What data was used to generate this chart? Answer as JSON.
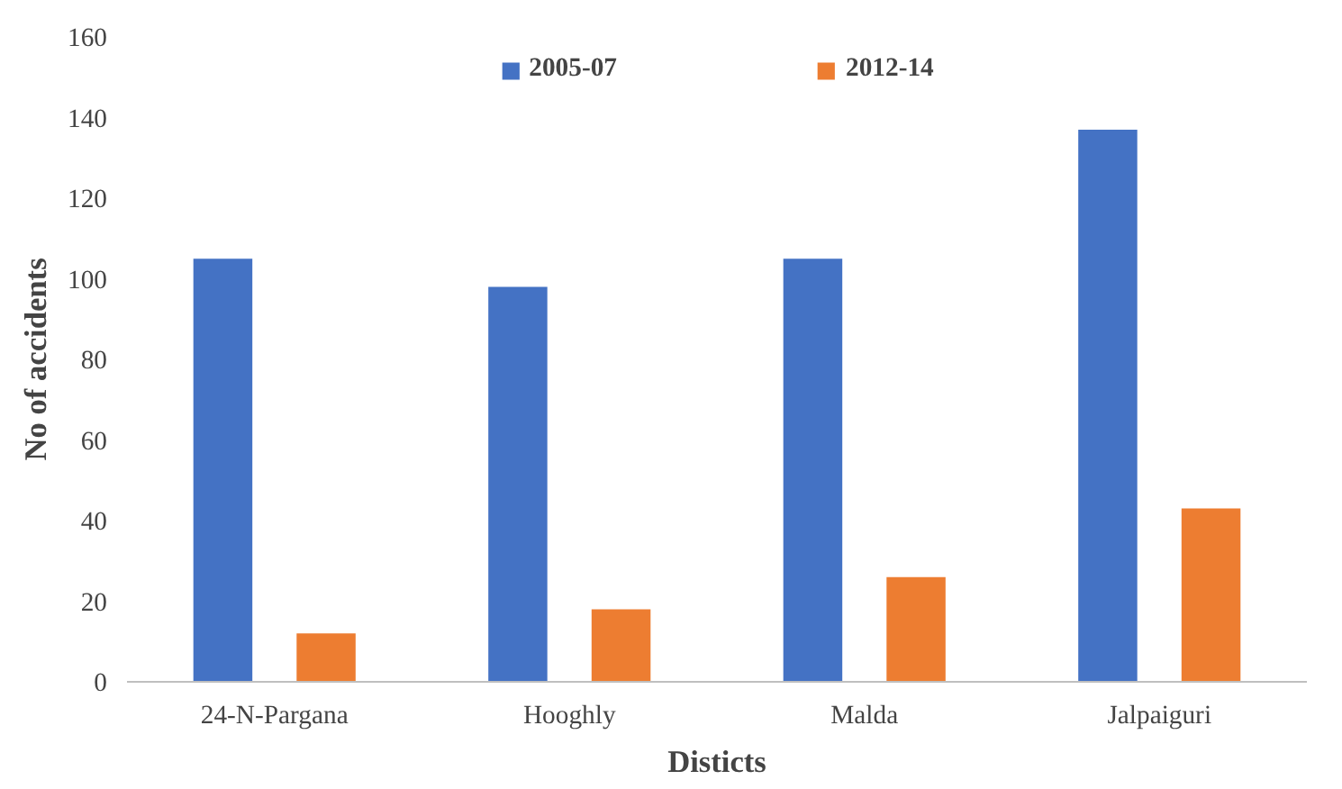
{
  "chart_data": {
    "type": "bar",
    "xlabel": "Disticts",
    "ylabel": "No of accidents",
    "categories": [
      "24-N-Pargana",
      "Hooghly",
      "Malda",
      "Jalpaiguri"
    ],
    "series": [
      {
        "name": "2005-07",
        "color": "#4472c4",
        "values": [
          105,
          98,
          105,
          137
        ]
      },
      {
        "name": "2012-14",
        "color": "#ed7d31",
        "values": [
          12,
          18,
          26,
          43
        ]
      }
    ],
    "ylim": [
      0,
      160
    ],
    "yticks": [
      0,
      20,
      40,
      60,
      80,
      100,
      120,
      140,
      160
    ],
    "grid": false,
    "legend": "top"
  }
}
